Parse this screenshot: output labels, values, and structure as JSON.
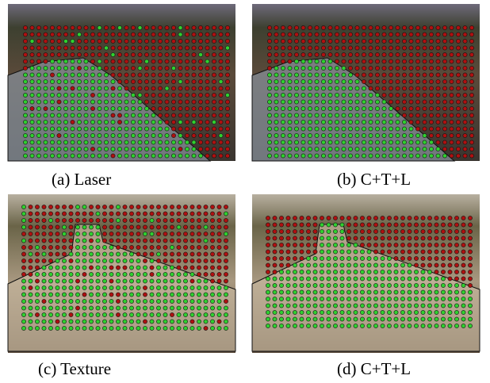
{
  "figure": {
    "panels": [
      {
        "caption": "(a) Laser"
      },
      {
        "caption": "(b) C+T+L"
      },
      {
        "caption": "(c) Texture"
      },
      {
        "caption": "(d) C+T+L"
      }
    ]
  }
}
